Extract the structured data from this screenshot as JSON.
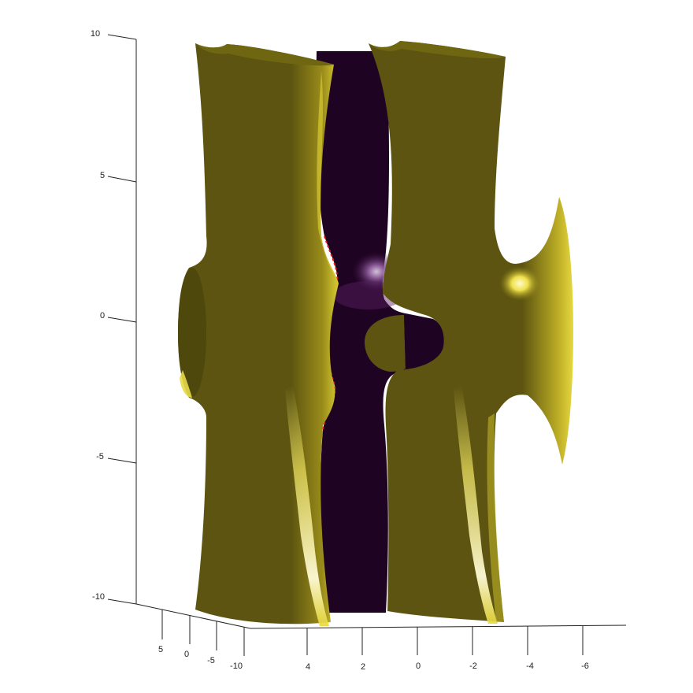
{
  "figure": {
    "kind": "3D isosurface plot",
    "surface_colors": {
      "outer_surface": "#5c5410",
      "outer_highlight": "#f7f09a",
      "inner_surface": "#1f0322",
      "inner_highlight": "#d9c6e6",
      "section_edge": "#e0201a"
    }
  },
  "axes": {
    "z": {
      "ticks": [
        "10",
        "5",
        "0",
        "-5",
        "-10"
      ]
    },
    "x": {
      "ticks": [
        "4",
        "2",
        "0",
        "-2",
        "-4",
        "-6"
      ]
    },
    "y": {
      "ticks": [
        "5",
        "0",
        "-5",
        "-10"
      ]
    }
  }
}
